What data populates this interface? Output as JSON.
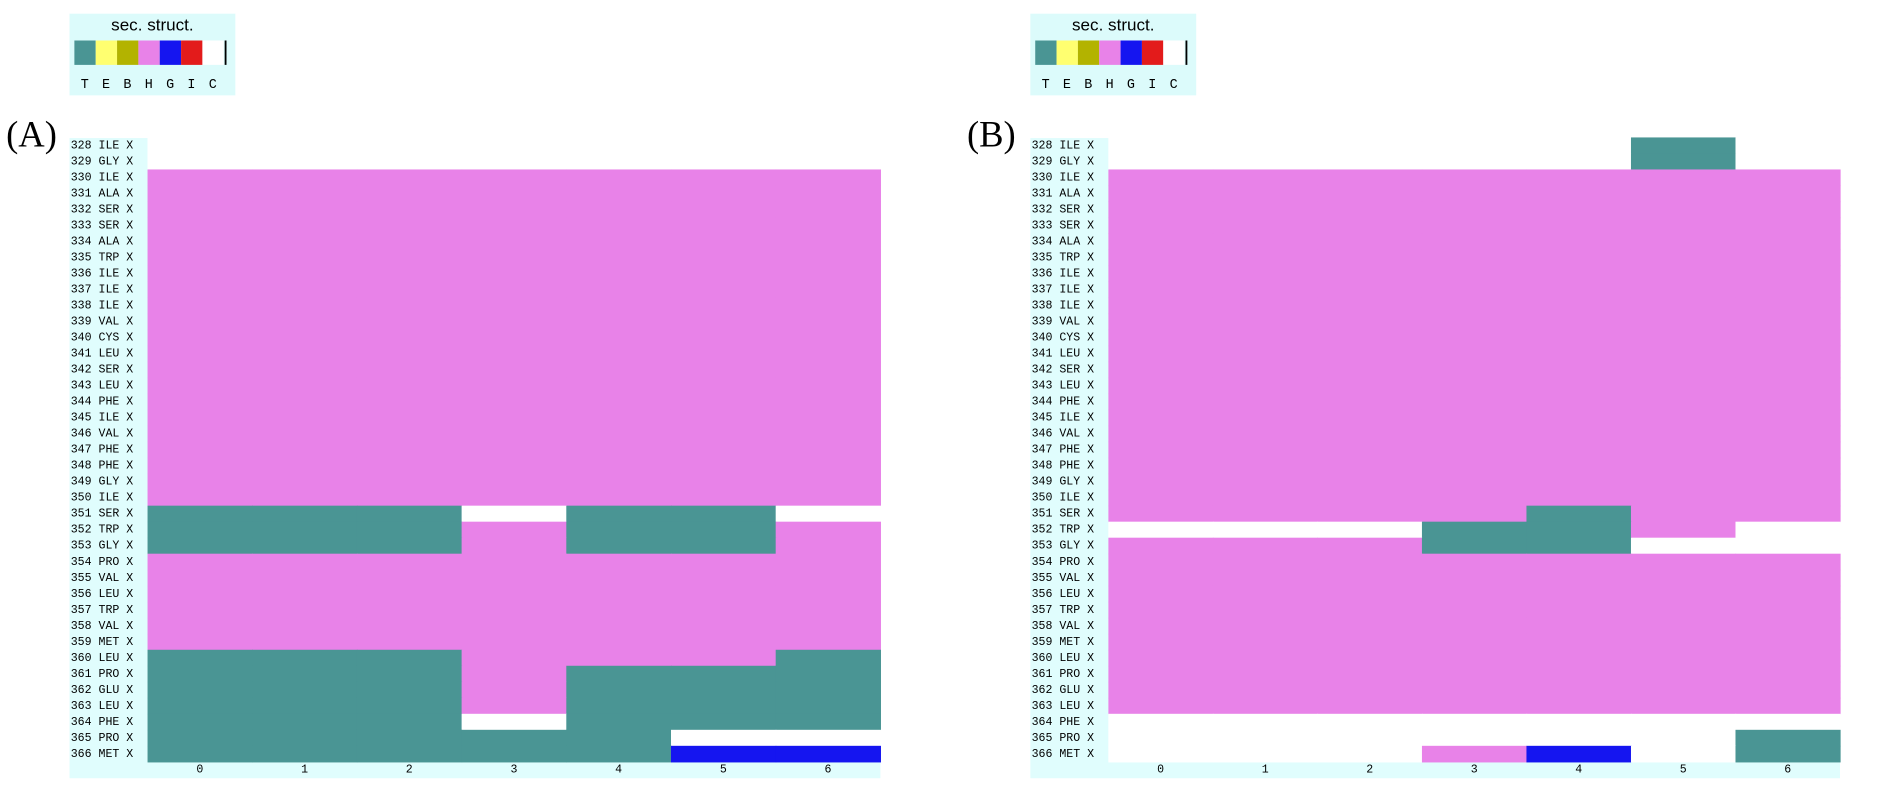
{
  "legend": {
    "title": "sec. struct.",
    "codes": [
      {
        "code": "T",
        "color": "#4a9594"
      },
      {
        "code": "E",
        "color": "#ffff70"
      },
      {
        "code": "B",
        "color": "#b3b300"
      },
      {
        "code": "H",
        "color": "#e882e8"
      },
      {
        "code": "G",
        "color": "#1515f0"
      },
      {
        "code": "I",
        "color": "#e31b1b"
      },
      {
        "code": "C",
        "color": "#ffffff"
      }
    ]
  },
  "residues": [
    "328 ILE X",
    "329 GLY X",
    "330 ILE X",
    "331 ALA X",
    "332 SER X",
    "333 SER X",
    "334 ALA X",
    "335 TRP X",
    "336 ILE X",
    "337 ILE X",
    "338 ILE X",
    "339 VAL X",
    "340 CYS X",
    "341 LEU X",
    "342 SER X",
    "343 LEU X",
    "344 PHE X",
    "345 ILE X",
    "346 VAL X",
    "347 PHE X",
    "348 PHE X",
    "349 GLY X",
    "350 ILE X",
    "351 SER X",
    "352 TRP X",
    "353 GLY X",
    "354 PRO X",
    "355 VAL X",
    "356 LEU X",
    "357 TRP X",
    "358 VAL X",
    "359 MET X",
    "360 LEU X",
    "361 PRO X",
    "362 GLU X",
    "363 LEU X",
    "364 PHE X",
    "365 PRO X",
    "366 MET X"
  ],
  "frames": [
    0,
    1,
    2,
    3,
    4,
    5,
    6
  ],
  "panels": [
    {
      "label": "(A)",
      "cells": [
        [
          "C",
          "C",
          "C",
          "C",
          "C",
          "C",
          "C"
        ],
        [
          "C",
          "C",
          "C",
          "C",
          "C",
          "C",
          "C"
        ],
        [
          "H",
          "H",
          "H",
          "H",
          "H",
          "H",
          "H"
        ],
        [
          "H",
          "H",
          "H",
          "H",
          "H",
          "H",
          "H"
        ],
        [
          "H",
          "H",
          "H",
          "H",
          "H",
          "H",
          "H"
        ],
        [
          "H",
          "H",
          "H",
          "H",
          "H",
          "H",
          "H"
        ],
        [
          "H",
          "H",
          "H",
          "H",
          "H",
          "H",
          "H"
        ],
        [
          "H",
          "H",
          "H",
          "H",
          "H",
          "H",
          "H"
        ],
        [
          "H",
          "H",
          "H",
          "H",
          "H",
          "H",
          "H"
        ],
        [
          "H",
          "H",
          "H",
          "H",
          "H",
          "H",
          "H"
        ],
        [
          "H",
          "H",
          "H",
          "H",
          "H",
          "H",
          "H"
        ],
        [
          "H",
          "H",
          "H",
          "H",
          "H",
          "H",
          "H"
        ],
        [
          "H",
          "H",
          "H",
          "H",
          "H",
          "H",
          "H"
        ],
        [
          "H",
          "H",
          "H",
          "H",
          "H",
          "H",
          "H"
        ],
        [
          "H",
          "H",
          "H",
          "H",
          "H",
          "H",
          "H"
        ],
        [
          "H",
          "H",
          "H",
          "H",
          "H",
          "H",
          "H"
        ],
        [
          "H",
          "H",
          "H",
          "H",
          "H",
          "H",
          "H"
        ],
        [
          "H",
          "H",
          "H",
          "H",
          "H",
          "H",
          "H"
        ],
        [
          "H",
          "H",
          "H",
          "H",
          "H",
          "H",
          "H"
        ],
        [
          "H",
          "H",
          "H",
          "H",
          "H",
          "H",
          "H"
        ],
        [
          "H",
          "H",
          "H",
          "H",
          "H",
          "H",
          "H"
        ],
        [
          "H",
          "H",
          "H",
          "H",
          "H",
          "H",
          "H"
        ],
        [
          "H",
          "H",
          "H",
          "H",
          "H",
          "H",
          "H"
        ],
        [
          "T",
          "T",
          "T",
          "C",
          "T",
          "T",
          "C"
        ],
        [
          "T",
          "T",
          "T",
          "H",
          "T",
          "T",
          "H"
        ],
        [
          "T",
          "T",
          "T",
          "H",
          "T",
          "T",
          "H"
        ],
        [
          "H",
          "H",
          "H",
          "H",
          "H",
          "H",
          "H"
        ],
        [
          "H",
          "H",
          "H",
          "H",
          "H",
          "H",
          "H"
        ],
        [
          "H",
          "H",
          "H",
          "H",
          "H",
          "H",
          "H"
        ],
        [
          "H",
          "H",
          "H",
          "H",
          "H",
          "H",
          "H"
        ],
        [
          "H",
          "H",
          "H",
          "H",
          "H",
          "H",
          "H"
        ],
        [
          "H",
          "H",
          "H",
          "H",
          "H",
          "H",
          "H"
        ],
        [
          "T",
          "T",
          "T",
          "H",
          "H",
          "H",
          "T"
        ],
        [
          "T",
          "T",
          "T",
          "H",
          "T",
          "T",
          "T"
        ],
        [
          "T",
          "T",
          "T",
          "H",
          "T",
          "T",
          "T"
        ],
        [
          "T",
          "T",
          "T",
          "H",
          "T",
          "T",
          "T"
        ],
        [
          "T",
          "T",
          "T",
          "C",
          "T",
          "T",
          "T"
        ],
        [
          "T",
          "T",
          "T",
          "T",
          "T",
          "C",
          "C"
        ],
        [
          "T",
          "T",
          "T",
          "T",
          "T",
          "G",
          "G"
        ]
      ]
    },
    {
      "label": "(B)",
      "cells": [
        [
          "C",
          "C",
          "C",
          "C",
          "C",
          "T",
          "C"
        ],
        [
          "C",
          "C",
          "C",
          "C",
          "C",
          "T",
          "C"
        ],
        [
          "H",
          "H",
          "H",
          "H",
          "H",
          "H",
          "H"
        ],
        [
          "H",
          "H",
          "H",
          "H",
          "H",
          "H",
          "H"
        ],
        [
          "H",
          "H",
          "H",
          "H",
          "H",
          "H",
          "H"
        ],
        [
          "H",
          "H",
          "H",
          "H",
          "H",
          "H",
          "H"
        ],
        [
          "H",
          "H",
          "H",
          "H",
          "H",
          "H",
          "H"
        ],
        [
          "H",
          "H",
          "H",
          "H",
          "H",
          "H",
          "H"
        ],
        [
          "H",
          "H",
          "H",
          "H",
          "H",
          "H",
          "H"
        ],
        [
          "H",
          "H",
          "H",
          "H",
          "H",
          "H",
          "H"
        ],
        [
          "H",
          "H",
          "H",
          "H",
          "H",
          "H",
          "H"
        ],
        [
          "H",
          "H",
          "H",
          "H",
          "H",
          "H",
          "H"
        ],
        [
          "H",
          "H",
          "H",
          "H",
          "H",
          "H",
          "H"
        ],
        [
          "H",
          "H",
          "H",
          "H",
          "H",
          "H",
          "H"
        ],
        [
          "H",
          "H",
          "H",
          "H",
          "H",
          "H",
          "H"
        ],
        [
          "H",
          "H",
          "H",
          "H",
          "H",
          "H",
          "H"
        ],
        [
          "H",
          "H",
          "H",
          "H",
          "H",
          "H",
          "H"
        ],
        [
          "H",
          "H",
          "H",
          "H",
          "H",
          "H",
          "H"
        ],
        [
          "H",
          "H",
          "H",
          "H",
          "H",
          "H",
          "H"
        ],
        [
          "H",
          "H",
          "H",
          "H",
          "H",
          "H",
          "H"
        ],
        [
          "H",
          "H",
          "H",
          "H",
          "H",
          "H",
          "H"
        ],
        [
          "H",
          "H",
          "H",
          "H",
          "H",
          "H",
          "H"
        ],
        [
          "H",
          "H",
          "H",
          "H",
          "H",
          "H",
          "H"
        ],
        [
          "H",
          "H",
          "H",
          "H",
          "T",
          "H",
          "H"
        ],
        [
          "C",
          "C",
          "C",
          "T",
          "T",
          "H",
          "C"
        ],
        [
          "H",
          "H",
          "H",
          "T",
          "T",
          "C",
          "C"
        ],
        [
          "H",
          "H",
          "H",
          "H",
          "H",
          "H",
          "H"
        ],
        [
          "H",
          "H",
          "H",
          "H",
          "H",
          "H",
          "H"
        ],
        [
          "H",
          "H",
          "H",
          "H",
          "H",
          "H",
          "H"
        ],
        [
          "H",
          "H",
          "H",
          "H",
          "H",
          "H",
          "H"
        ],
        [
          "H",
          "H",
          "H",
          "H",
          "H",
          "H",
          "H"
        ],
        [
          "H",
          "H",
          "H",
          "H",
          "H",
          "H",
          "H"
        ],
        [
          "H",
          "H",
          "H",
          "H",
          "H",
          "H",
          "H"
        ],
        [
          "H",
          "H",
          "H",
          "H",
          "H",
          "H",
          "H"
        ],
        [
          "H",
          "H",
          "H",
          "H",
          "H",
          "H",
          "H"
        ],
        [
          "H",
          "H",
          "H",
          "H",
          "H",
          "H",
          "H"
        ],
        [
          "C",
          "C",
          "C",
          "C",
          "C",
          "C",
          "C"
        ],
        [
          "C",
          "C",
          "C",
          "C",
          "C",
          "C",
          "T"
        ],
        [
          "C",
          "C",
          "C",
          "H",
          "G",
          "C",
          "T"
        ]
      ]
    }
  ]
}
